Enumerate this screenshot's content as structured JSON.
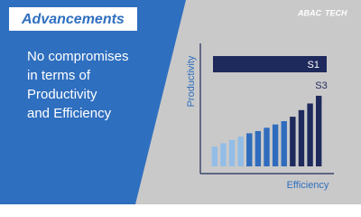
{
  "header": {
    "title": "Advancements",
    "logo": "ABAC",
    "logo_sub": "TECH"
  },
  "body": {
    "lines": [
      "No compromises",
      "in terms of",
      "Productivity",
      "and Efficiency"
    ]
  },
  "chart_data": {
    "type": "bar",
    "y_label": "Productivity",
    "x_label": "Efficiency",
    "annotations": [
      "S1",
      "S3"
    ],
    "categories": [
      null,
      null,
      null,
      null,
      null,
      null,
      null,
      null,
      null,
      null,
      null,
      null,
      null
    ],
    "values": [
      18,
      21,
      24,
      27,
      30,
      32,
      35,
      38,
      41,
      45,
      51,
      57,
      64
    ],
    "colors": [
      "#93bde6",
      "#93bde6",
      "#93bde6",
      "#93bde6",
      "#2f6cbd",
      "#2f6cbd",
      "#2f6cbd",
      "#2f6cbd",
      "#2f6cbd",
      "#1e2a5c",
      "#1e2a5c",
      "#1e2a5c",
      "#1e2a5c"
    ],
    "ylim": [
      0,
      100
    ]
  }
}
